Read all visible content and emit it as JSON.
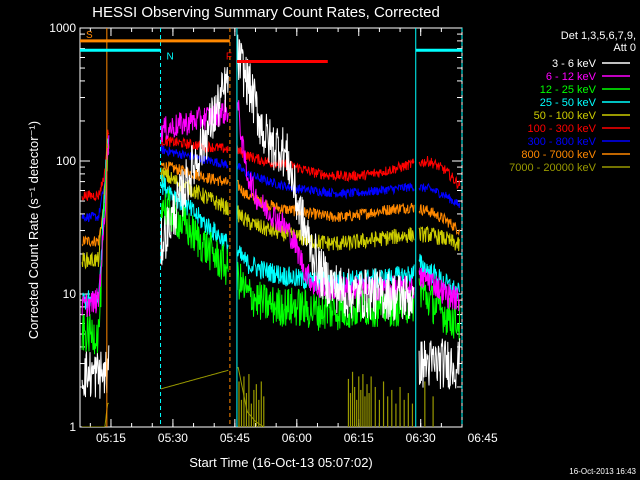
{
  "chart_data": {
    "type": "line",
    "title": "HESSI Observing Summary Count Rates, Corrected",
    "xlabel": "Start Time (16-Oct-13 05:07:02)",
    "ylabel": "Corrected Count Rate (s⁻¹ detector⁻¹)",
    "yscale": "log",
    "xlim": [
      7.5,
      100
    ],
    "ylim": [
      1,
      1000
    ],
    "x_ticks": [
      {
        "v": 15,
        "label": "05:15"
      },
      {
        "v": 30,
        "label": "05:30"
      },
      {
        "v": 45,
        "label": "05:45"
      },
      {
        "v": 60,
        "label": "06:00"
      },
      {
        "v": 75,
        "label": "06:15"
      },
      {
        "v": 90,
        "label": "06:30"
      },
      {
        "v": 105,
        "label": "06:45"
      }
    ],
    "y_ticks": [
      {
        "v": 1,
        "label": "1"
      },
      {
        "v": 10,
        "label": "10"
      },
      {
        "v": 100,
        "label": "100"
      },
      {
        "v": 1000,
        "label": "1000"
      }
    ],
    "legend": {
      "placement": "right",
      "header": [
        "Det 1,3,5,6,7,9,",
        "Att 0"
      ],
      "entries": [
        {
          "label": "3 - 6 keV",
          "color": "#ffffff"
        },
        {
          "label": "6 - 12 keV",
          "color": "#ff00ff"
        },
        {
          "label": "12 - 25 keV",
          "color": "#00ff00"
        },
        {
          "label": "25 - 50 keV",
          "color": "#00ffff"
        },
        {
          "label": "50 - 100 keV",
          "color": "#cccc00"
        },
        {
          "label": "100 - 300 keV",
          "color": "#ff0000"
        },
        {
          "label": "300 - 800 keV",
          "color": "#0000ff"
        },
        {
          "label": "800 - 7000 keV",
          "color": "#ff8800"
        },
        {
          "label": "7000 - 20000 keV",
          "color": "#999900"
        }
      ]
    },
    "gaps": [
      [
        14.5,
        27.0
      ],
      [
        43.5,
        45.5
      ],
      [
        88.5,
        89.5
      ]
    ],
    "series": [
      {
        "name": "3 - 6 keV",
        "color": "#ffffff",
        "noise": 0.45,
        "x": [
          8,
          12,
          13.5,
          14.2,
          45.8,
          48,
          50,
          52,
          54,
          56,
          58,
          60,
          62,
          64,
          66,
          68,
          70,
          72,
          74,
          76,
          78,
          80,
          82,
          84,
          86,
          88,
          89.8,
          92,
          96,
          99.5
        ],
        "y": [
          2.5,
          2.5,
          2.5,
          2.5,
          600,
          400,
          260,
          160,
          130,
          130,
          100,
          50,
          30,
          20,
          14,
          12,
          11,
          10,
          10,
          10,
          10,
          10,
          10,
          9.5,
          9.5,
          9.5,
          3,
          3,
          3,
          3
        ]
      },
      {
        "name": "6 - 12 keV",
        "color": "#ff00ff",
        "noise": 0.22,
        "x": [
          8,
          12,
          13.5,
          14.2,
          45.8,
          47,
          48,
          50,
          52,
          54,
          56,
          58,
          60,
          62,
          64,
          66,
          68,
          72,
          76,
          80,
          84,
          88,
          89.8,
          92,
          96,
          99.5
        ],
        "y": [
          8,
          9,
          40,
          130,
          250,
          120,
          80,
          55,
          45,
          40,
          35,
          30,
          22,
          15,
          12,
          11,
          11,
          11,
          11,
          11,
          11,
          11,
          13,
          13,
          10,
          9
        ]
      },
      {
        "name": "12 - 25 keV",
        "color": "#00ff00",
        "noise": 0.35,
        "x": [
          8,
          12,
          13.5,
          14.2,
          45.8,
          48,
          52,
          56,
          60,
          64,
          68,
          72,
          76,
          80,
          84,
          88,
          89.8,
          92,
          96,
          99.5
        ],
        "y": [
          5,
          5,
          40,
          120,
          13,
          10,
          8.5,
          8,
          8,
          7.5,
          7.5,
          7.5,
          8,
          8,
          8,
          8.5,
          11,
          9,
          7,
          6
        ]
      },
      {
        "name": "25 - 50 keV",
        "color": "#00ffff",
        "noise": 0.18,
        "x": [
          8,
          12,
          13.5,
          14.2,
          45.8,
          48,
          52,
          56,
          60,
          64,
          68,
          72,
          76,
          80,
          84,
          88,
          89.8,
          92,
          96,
          99.5
        ],
        "y": [
          9,
          9,
          60,
          160,
          20,
          17,
          15,
          14,
          13,
          12.5,
          12.5,
          12.5,
          13,
          13,
          13.5,
          14,
          17,
          15,
          12,
          10
        ]
      },
      {
        "name": "50 - 100 keV",
        "color": "#cccc00",
        "noise": 0.14,
        "x": [
          8,
          12,
          13.5,
          14.2,
          45.8,
          48,
          52,
          56,
          60,
          64,
          68,
          72,
          76,
          80,
          84,
          88,
          92,
          96,
          99.5
        ],
        "y": [
          18,
          18,
          60,
          130,
          40,
          35,
          31,
          29,
          27,
          25,
          24,
          24,
          25,
          26,
          27,
          28,
          28,
          26,
          23
        ]
      },
      {
        "name": "100 - 300 keV",
        "color": "#ff0000",
        "noise": 0.09,
        "x": [
          8,
          12,
          13.5,
          14.2,
          45.8,
          48,
          52,
          56,
          60,
          64,
          68,
          72,
          76,
          80,
          84,
          88,
          92,
          96,
          99.5
        ],
        "y": [
          55,
          55,
          80,
          160,
          120,
          110,
          100,
          95,
          90,
          82,
          78,
          77,
          78,
          82,
          88,
          95,
          100,
          85,
          65
        ]
      },
      {
        "name": "300 - 800 keV",
        "color": "#0000ff",
        "noise": 0.08,
        "x": [
          8,
          12,
          13.5,
          14.2,
          45.8,
          48,
          52,
          56,
          60,
          64,
          68,
          72,
          76,
          80,
          84,
          88,
          92,
          96,
          99.5
        ],
        "y": [
          38,
          38,
          70,
          150,
          90,
          80,
          72,
          66,
          62,
          60,
          58,
          57,
          58,
          60,
          62,
          64,
          62,
          55,
          46
        ]
      },
      {
        "name": "800 - 7000 keV",
        "color": "#ff8800",
        "noise": 0.1,
        "x": [
          8,
          12,
          13.5,
          14.2,
          45.8,
          48,
          52,
          56,
          60,
          64,
          68,
          72,
          76,
          80,
          84,
          88,
          92,
          96,
          99.5
        ],
        "y": [
          25,
          25,
          50,
          120,
          65,
          55,
          48,
          44,
          42,
          40,
          38,
          38,
          40,
          42,
          44,
          45,
          42,
          36,
          30
        ]
      },
      {
        "name": "7000 - 20000 keV",
        "color": "#999900",
        "noise": 0.0,
        "x": [
          8,
          12,
          13.5,
          14.2,
          45.8,
          48,
          50,
          52
        ],
        "y": [
          1,
          1,
          1,
          1.5,
          2.8,
          1.3,
          1.1,
          1
        ]
      }
    ],
    "spikes": [
      {
        "series": "7000 - 20000 keV",
        "x": [
          46,
          46.6,
          47.2,
          47.8,
          48.4,
          49,
          49.6,
          50.2,
          50.8,
          51.4,
          52,
          72.5,
          73,
          73.5,
          74,
          74.5,
          75,
          75.5,
          76,
          76.5,
          77,
          77.5,
          78,
          79,
          80,
          81,
          82,
          83,
          84,
          85,
          86,
          87,
          88,
          91,
          93
        ],
        "y": [
          2.2,
          1.6,
          2.4,
          1.8,
          2.5,
          1.5,
          1.9,
          2.1,
          1.6,
          2.2,
          1.7,
          2.3,
          1.8,
          2.6,
          2.0,
          1.6,
          2.4,
          1.9,
          2.5,
          1.7,
          2.1,
          1.8,
          2.4,
          2.0,
          1.6,
          2.2,
          1.7,
          1.9,
          1.5,
          2.0,
          1.6,
          1.8,
          1.5,
          2.2,
          1.7
        ]
      }
    ],
    "markers": {
      "flags": [
        {
          "letter": "S",
          "x_start": 7.5,
          "x_end": 14.0,
          "color": "#ff8800",
          "level": 800
        },
        {
          "letter": "",
          "x_start": 14.0,
          "x_end": 43.8,
          "color": "#ff8800",
          "level": 800
        },
        {
          "letter": "N",
          "x_start": 7.5,
          "x_end": 27.0,
          "color": "#00ffff",
          "level": 680
        },
        {
          "letter": "",
          "x_start": 88.8,
          "x_end": 100,
          "color": "#00ffff",
          "level": 680
        },
        {
          "letter": "F",
          "x_start": 45.5,
          "x_end": 67.5,
          "color": "#ff0000",
          "level": 560
        }
      ],
      "vlines": [
        {
          "x": 14.0,
          "color": "#ff8800",
          "style": "solid"
        },
        {
          "x": 27.0,
          "color": "#00ffff",
          "style": "dashed"
        },
        {
          "x": 43.8,
          "color": "#ff8800",
          "style": "dashed"
        },
        {
          "x": 45.5,
          "color": "#00ffff",
          "style": "solid"
        },
        {
          "x": 88.8,
          "color": "#00ffff",
          "style": "solid"
        },
        {
          "x": 100,
          "color": "#00ffff",
          "style": "dashed"
        }
      ]
    },
    "grid": false
  },
  "footer": {
    "date_stamp": "16-Oct-2013 16:43"
  }
}
